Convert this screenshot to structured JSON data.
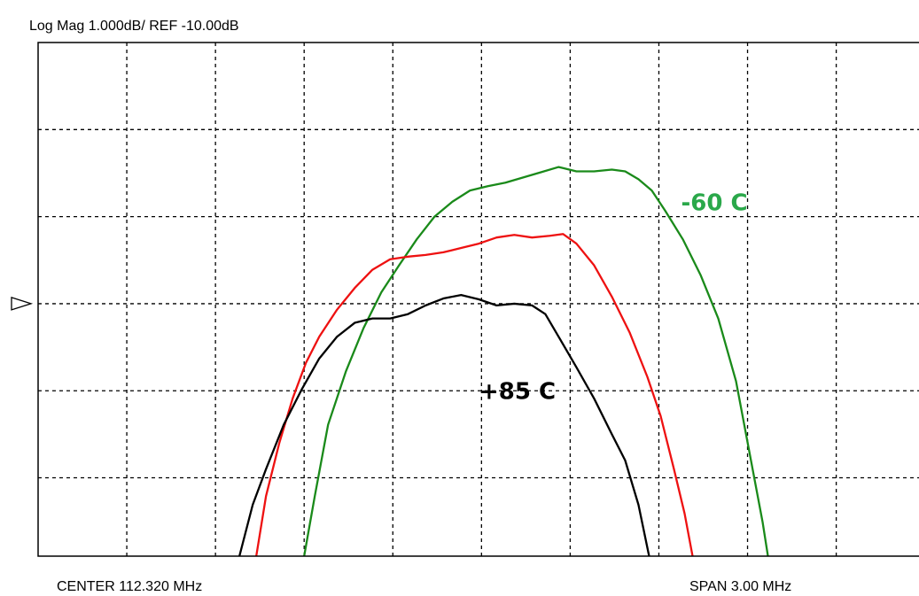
{
  "chart_data": {
    "type": "line",
    "title": "Log Mag 1.000dB/  REF -10.00dB",
    "x_label_left": "CENTER 112.320 MHz",
    "x_label_right": "SPAN 3.00 MHz",
    "xlim": [
      110.82,
      113.8
    ],
    "ylim": [
      -12.9,
      -7
    ],
    "xticks": [
      111.12,
      111.42,
      111.72,
      112.02,
      112.32,
      112.62,
      112.92,
      113.22,
      113.52
    ],
    "yticks": [
      -12,
      -11,
      -10,
      -9,
      -8
    ],
    "grid": true,
    "ref_level": -10,
    "series": [
      {
        "name": "-60 C",
        "color": "#1a8a1a",
        "label_color": "#2aa84a",
        "x": [
          111.72,
          111.756,
          111.801,
          111.861,
          111.921,
          111.981,
          112.041,
          112.101,
          112.161,
          112.221,
          112.281,
          112.341,
          112.401,
          112.461,
          112.521,
          112.581,
          112.641,
          112.701,
          112.761,
          112.806,
          112.851,
          112.896,
          112.941,
          113.001,
          113.061,
          113.121,
          113.181,
          113.226,
          113.271,
          113.289
        ],
        "values": [
          -12.9,
          -12.21,
          -11.39,
          -10.78,
          -10.28,
          -9.87,
          -9.56,
          -9.26,
          -9.0,
          -8.83,
          -8.7,
          -8.65,
          -8.61,
          -8.55,
          -8.49,
          -8.43,
          -8.48,
          -8.48,
          -8.46,
          -8.48,
          -8.57,
          -8.7,
          -8.93,
          -9.26,
          -9.67,
          -10.17,
          -10.89,
          -11.7,
          -12.51,
          -12.9
        ]
      },
      {
        "color": "#ee1111",
        "x": [
          111.558,
          111.591,
          111.636,
          111.681,
          111.726,
          111.771,
          111.831,
          111.891,
          111.951,
          112.011,
          112.071,
          112.131,
          112.191,
          112.251,
          112.311,
          112.371,
          112.431,
          112.491,
          112.551,
          112.596,
          112.641,
          112.701,
          112.761,
          112.821,
          112.881,
          112.926,
          112.971,
          113.007,
          113.034
        ],
        "values": [
          -12.9,
          -12.21,
          -11.6,
          -11.09,
          -10.68,
          -10.38,
          -10.07,
          -9.82,
          -9.61,
          -9.49,
          -9.46,
          -9.44,
          -9.41,
          -9.36,
          -9.31,
          -9.24,
          -9.21,
          -9.24,
          -9.22,
          -9.2,
          -9.31,
          -9.56,
          -9.92,
          -10.33,
          -10.84,
          -11.29,
          -11.9,
          -12.41,
          -12.9
        ]
      },
      {
        "name": "+85 C",
        "color": "#000000",
        "label_color": "#000000",
        "x": [
          111.501,
          111.546,
          111.591,
          111.651,
          111.711,
          111.771,
          111.831,
          111.891,
          111.951,
          112.011,
          112.071,
          112.131,
          112.191,
          112.251,
          112.311,
          112.371,
          112.431,
          112.491,
          112.536,
          112.581,
          112.641,
          112.701,
          112.761,
          112.806,
          112.851,
          112.887
        ],
        "values": [
          -12.9,
          -12.31,
          -11.9,
          -11.39,
          -10.99,
          -10.63,
          -10.38,
          -10.22,
          -10.17,
          -10.17,
          -10.12,
          -10.02,
          -9.94,
          -9.9,
          -9.95,
          -10.02,
          -10.0,
          -10.02,
          -10.12,
          -10.38,
          -10.73,
          -11.09,
          -11.5,
          -11.8,
          -12.31,
          -12.9
        ]
      }
    ]
  }
}
